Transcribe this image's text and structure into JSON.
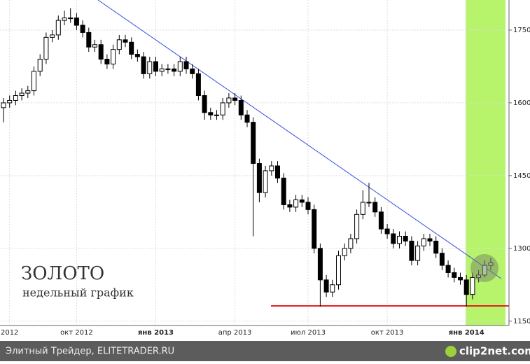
{
  "chart_data": {
    "type": "candlestick",
    "title": "ЗОЛОТО",
    "subtitle": "недельный график",
    "categories": [
      null,
      "2012",
      null,
      null,
      null,
      null,
      null,
      null,
      null,
      null,
      null,
      null,
      "окт 2012",
      null,
      null,
      null,
      null,
      null,
      null,
      null,
      null,
      null,
      null,
      null,
      null,
      "янв 2013",
      null,
      null,
      null,
      null,
      null,
      null,
      null,
      null,
      null,
      null,
      null,
      null,
      "апр 2013",
      null,
      null,
      null,
      null,
      null,
      null,
      null,
      null,
      null,
      null,
      null,
      "июл 2013",
      null,
      null,
      null,
      null,
      null,
      null,
      null,
      null,
      null,
      null,
      null,
      null,
      "окт 2013",
      null,
      null,
      null,
      null,
      null,
      null,
      null,
      null,
      null,
      null,
      null,
      null,
      "янв 2014",
      null,
      null,
      null,
      null
    ],
    "open": [
      1590,
      1600,
      1605,
      1615,
      1620,
      1625,
      1665,
      1690,
      1735,
      1740,
      1770,
      1775,
      1775,
      1760,
      1745,
      1715,
      1720,
      1690,
      1680,
      1710,
      1730,
      1725,
      1700,
      1695,
      1660,
      1685,
      1665,
      1670,
      1670,
      1665,
      1685,
      1670,
      1660,
      1615,
      1580,
      1575,
      1575,
      1600,
      1610,
      1605,
      1575,
      1560,
      1475,
      1415,
      1460,
      1470,
      1445,
      1390,
      1385,
      1400,
      1395,
      1380,
      1300,
      1235,
      1210,
      1225,
      1285,
      1300,
      1320,
      1370,
      1395,
      1395,
      1375,
      1340,
      1330,
      1310,
      1325,
      1315,
      1275,
      1305,
      1320,
      1315,
      1290,
      1265,
      1250,
      1240,
      1235,
      1205,
      1240,
      1245,
      1265
    ],
    "high": [
      1610,
      1615,
      1625,
      1630,
      1635,
      1675,
      1700,
      1745,
      1750,
      1780,
      1790,
      1795,
      1785,
      1770,
      1755,
      1730,
      1730,
      1700,
      1720,
      1740,
      1740,
      1735,
      1710,
      1705,
      1695,
      1695,
      1680,
      1680,
      1680,
      1695,
      1695,
      1680,
      1670,
      1625,
      1590,
      1585,
      1610,
      1620,
      1620,
      1615,
      1585,
      1570,
      1485,
      1470,
      1480,
      1480,
      1455,
      1400,
      1410,
      1410,
      1405,
      1390,
      1310,
      1245,
      1235,
      1295,
      1310,
      1330,
      1380,
      1420,
      1435,
      1405,
      1385,
      1350,
      1340,
      1335,
      1335,
      1325,
      1315,
      1330,
      1330,
      1325,
      1300,
      1275,
      1260,
      1250,
      1245,
      1250,
      1255,
      1275,
      1280
    ],
    "low": [
      1560,
      1590,
      1595,
      1605,
      1610,
      1615,
      1655,
      1680,
      1725,
      1730,
      1760,
      1765,
      1750,
      1735,
      1705,
      1705,
      1680,
      1670,
      1670,
      1700,
      1715,
      1690,
      1685,
      1650,
      1650,
      1655,
      1655,
      1660,
      1655,
      1655,
      1660,
      1650,
      1605,
      1565,
      1565,
      1565,
      1565,
      1590,
      1595,
      1565,
      1550,
      1325,
      1395,
      1405,
      1450,
      1435,
      1380,
      1375,
      1375,
      1385,
      1370,
      1290,
      1180,
      1200,
      1200,
      1215,
      1275,
      1290,
      1310,
      1360,
      1385,
      1365,
      1330,
      1320,
      1300,
      1300,
      1305,
      1265,
      1265,
      1295,
      1305,
      1280,
      1255,
      1240,
      1230,
      1225,
      1180,
      1195,
      1230,
      1240,
      1255
    ],
    "close": [
      1600,
      1605,
      1615,
      1620,
      1625,
      1665,
      1690,
      1735,
      1740,
      1770,
      1775,
      1775,
      1760,
      1745,
      1715,
      1720,
      1690,
      1680,
      1710,
      1730,
      1725,
      1700,
      1695,
      1660,
      1685,
      1665,
      1670,
      1670,
      1665,
      1685,
      1670,
      1660,
      1615,
      1580,
      1575,
      1575,
      1600,
      1610,
      1605,
      1575,
      1560,
      1475,
      1415,
      1460,
      1470,
      1445,
      1390,
      1385,
      1400,
      1395,
      1380,
      1300,
      1235,
      1210,
      1225,
      1285,
      1300,
      1320,
      1370,
      1395,
      1395,
      1375,
      1340,
      1330,
      1310,
      1325,
      1315,
      1275,
      1305,
      1320,
      1315,
      1290,
      1265,
      1250,
      1240,
      1235,
      1205,
      1240,
      1245,
      1265,
      1270
    ],
    "up_color": "#ffffff",
    "down_color": "#000000",
    "ylim": [
      1141,
      1812
    ],
    "yticks": [
      1150,
      1300,
      1450,
      1600,
      1750
    ],
    "grid": true
  },
  "footer": {
    "source": "Элитный Трейдер, ELITETRADER.RU",
    "logo": "clip2net.com"
  }
}
